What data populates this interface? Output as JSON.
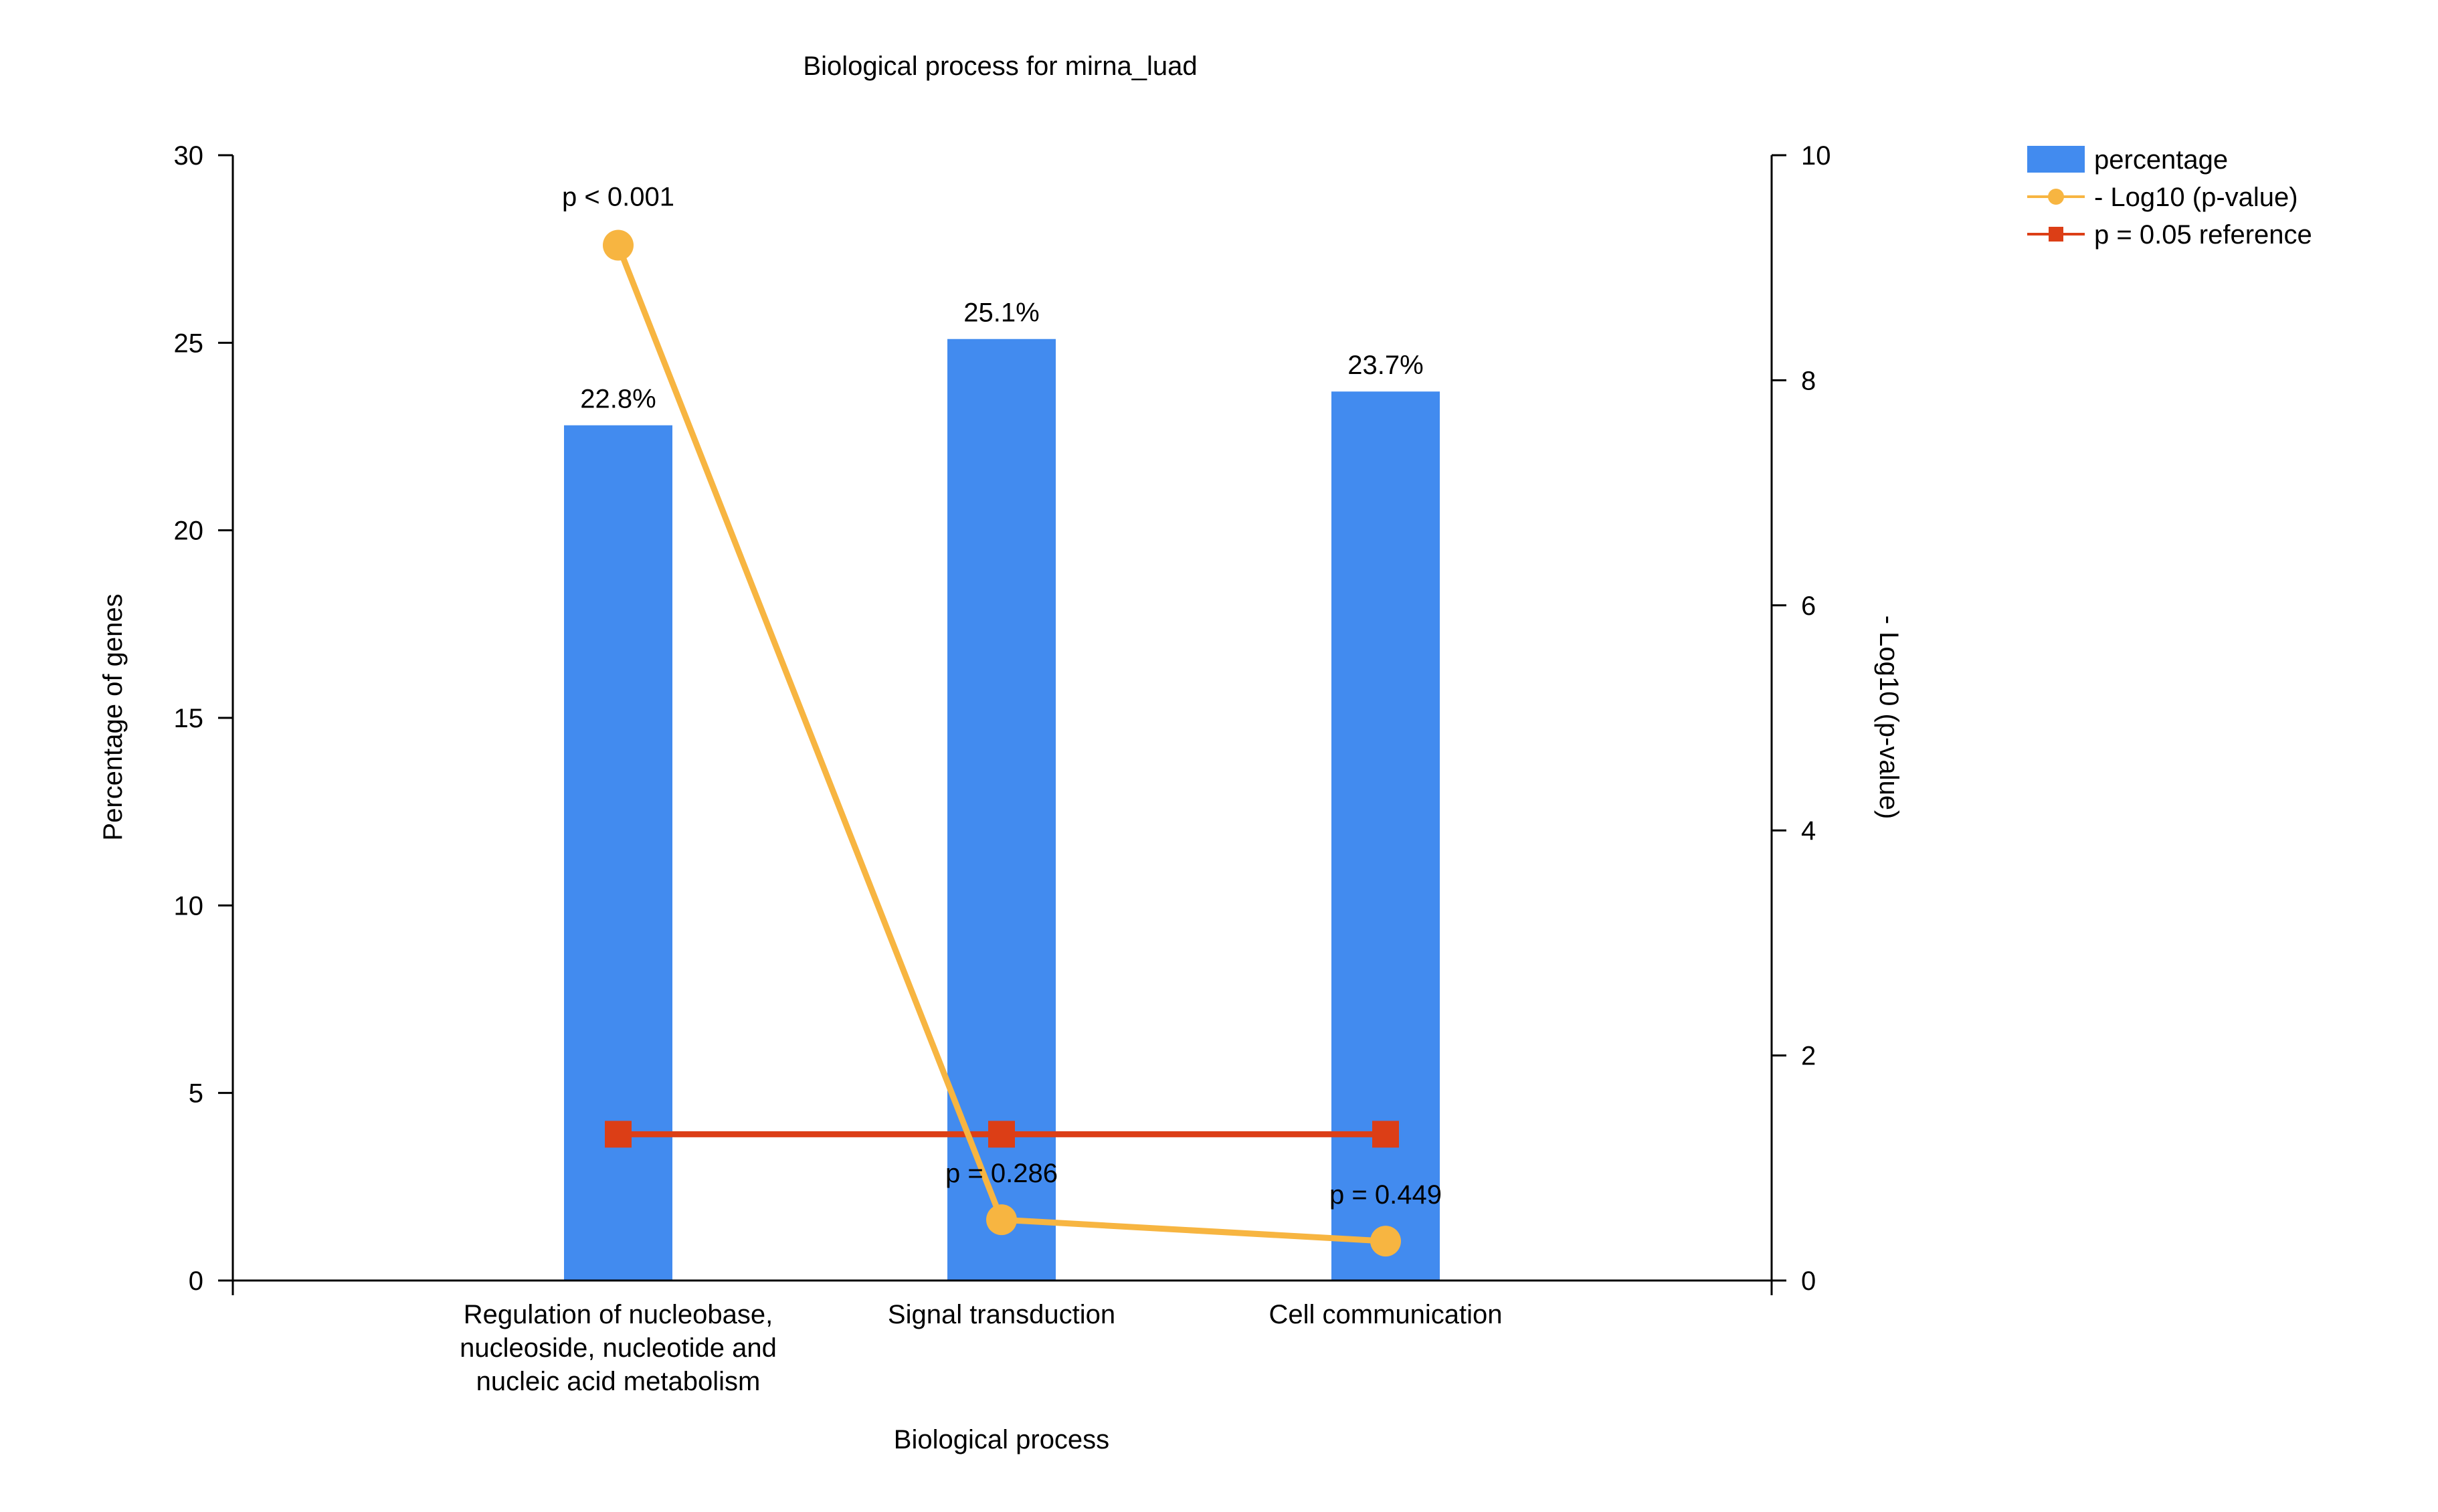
{
  "chart_data": {
    "type": "bar",
    "title": "Biological process for mirna_luad",
    "xlabel": "Biological process",
    "ylabel": "Percentage of genes",
    "y2label": "- Log10 (p-value)",
    "categories": [
      [
        "Regulation of nucleobase,",
        "nucleoside, nucleotide and",
        "nucleic acid metabolism"
      ],
      [
        "Signal transduction"
      ],
      [
        "Cell communication"
      ]
    ],
    "ylim": [
      0,
      30
    ],
    "y2lim": [
      0,
      10
    ],
    "yticks": [
      0,
      5,
      10,
      15,
      20,
      25,
      30
    ],
    "y2ticks": [
      0,
      2,
      4,
      6,
      8,
      10
    ],
    "legend_position": "top-right",
    "series": [
      {
        "name": "percentage",
        "kind": "bar",
        "axis": "left",
        "color": "#428BEF",
        "values": [
          22.8,
          25.1,
          23.7
        ],
        "labels": [
          "22.8%",
          "25.1%",
          "23.7%"
        ]
      },
      {
        "name": "- Log10 (p-value)",
        "kind": "line",
        "axis": "right",
        "marker": "circle",
        "color": "#F7B541",
        "values": [
          9.2,
          0.54,
          0.35
        ],
        "labels": [
          "p < 0.001",
          "p = 0.286",
          "p = 0.449"
        ]
      },
      {
        "name": "p = 0.05 reference",
        "kind": "line",
        "axis": "right",
        "marker": "square",
        "color": "#DC3E16",
        "values": [
          1.3,
          1.3,
          1.3
        ]
      }
    ]
  }
}
